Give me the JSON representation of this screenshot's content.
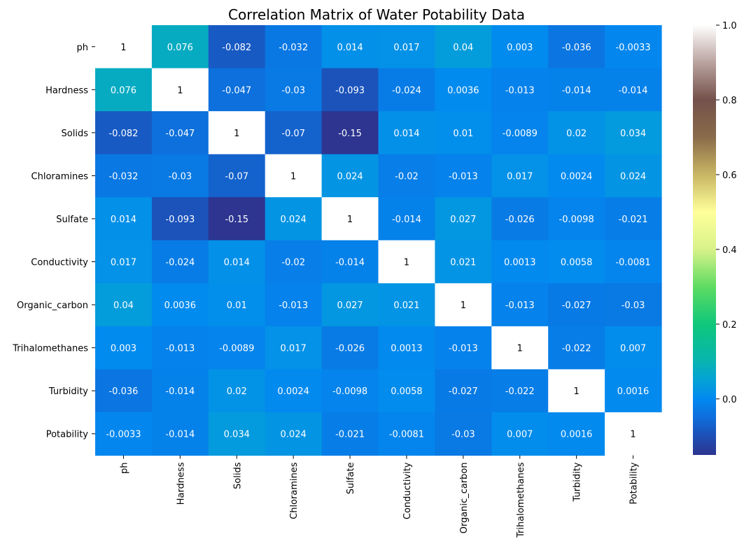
{
  "chart_data": {
    "type": "heatmap",
    "title": "Correlation Matrix of Water Potability Data",
    "xlabel": "",
    "ylabel": "",
    "x_categories": [
      "ph",
      "Hardness",
      "Solids",
      "Chloramines",
      "Sulfate",
      "Conductivity",
      "Organic_carbon",
      "Trihalomethanes",
      "Turbidity",
      "Potability"
    ],
    "y_categories": [
      "ph",
      "Hardness",
      "Solids",
      "Chloramines",
      "Sulfate",
      "Conductivity",
      "Organic_carbon",
      "Trihalomethanes",
      "Turbidity",
      "Potability"
    ],
    "values": [
      [
        1,
        0.076,
        -0.082,
        -0.032,
        0.014,
        0.017,
        0.04,
        0.003,
        -0.036,
        -0.0033
      ],
      [
        0.076,
        1,
        -0.047,
        -0.03,
        -0.093,
        -0.024,
        0.0036,
        -0.013,
        -0.014,
        -0.014
      ],
      [
        -0.082,
        -0.047,
        1,
        -0.07,
        -0.15,
        0.014,
        0.01,
        -0.0089,
        0.02,
        0.034
      ],
      [
        -0.032,
        -0.03,
        -0.07,
        1,
        0.024,
        -0.02,
        -0.013,
        0.017,
        0.0024,
        0.024
      ],
      [
        0.014,
        -0.093,
        -0.15,
        0.024,
        1,
        -0.014,
        0.027,
        -0.026,
        -0.0098,
        -0.021
      ],
      [
        0.017,
        -0.024,
        0.014,
        -0.02,
        -0.014,
        1,
        0.021,
        0.0013,
        0.0058,
        -0.0081
      ],
      [
        0.04,
        0.0036,
        0.01,
        -0.013,
        0.027,
        0.021,
        1,
        -0.013,
        -0.027,
        -0.03
      ],
      [
        0.003,
        -0.013,
        -0.0089,
        0.017,
        -0.026,
        0.0013,
        -0.013,
        1,
        -0.022,
        0.007
      ],
      [
        -0.036,
        -0.014,
        0.02,
        0.0024,
        -0.0098,
        0.0058,
        -0.027,
        -0.022,
        1,
        0.0016
      ],
      [
        -0.0033,
        -0.014,
        0.034,
        0.024,
        -0.021,
        -0.0081,
        -0.03,
        0.007,
        0.0016,
        1
      ]
    ],
    "annotations": [
      [
        "1",
        "0.076",
        "-0.082",
        "-0.032",
        "0.014",
        "0.017",
        "0.04",
        "0.003",
        "-0.036",
        "-0.0033"
      ],
      [
        "0.076",
        "1",
        "-0.047",
        "-0.03",
        "-0.093",
        "-0.024",
        "0.0036",
        "-0.013",
        "-0.014",
        "-0.014"
      ],
      [
        "-0.082",
        "-0.047",
        "1",
        "-0.07",
        "-0.15",
        "0.014",
        "0.01",
        "-0.0089",
        "0.02",
        "0.034"
      ],
      [
        "-0.032",
        "-0.03",
        "-0.07",
        "1",
        "0.024",
        "-0.02",
        "-0.013",
        "0.017",
        "0.0024",
        "0.024"
      ],
      [
        "0.014",
        "-0.093",
        "-0.15",
        "0.024",
        "1",
        "-0.014",
        "0.027",
        "-0.026",
        "-0.0098",
        "-0.021"
      ],
      [
        "0.017",
        "-0.024",
        "0.014",
        "-0.02",
        "-0.014",
        "1",
        "0.021",
        "0.0013",
        "0.0058",
        "-0.0081"
      ],
      [
        "0.04",
        "0.0036",
        "0.01",
        "-0.013",
        "0.027",
        "0.021",
        "1",
        "-0.013",
        "-0.027",
        "-0.03"
      ],
      [
        "0.003",
        "-0.013",
        "-0.0089",
        "0.017",
        "-0.026",
        "0.0013",
        "-0.013",
        "1",
        "-0.022",
        "0.007"
      ],
      [
        "-0.036",
        "-0.014",
        "0.02",
        "0.0024",
        "-0.0098",
        "0.0058",
        "-0.027",
        "-0.022",
        "1",
        "0.0016"
      ],
      [
        "-0.0033",
        "-0.014",
        "0.034",
        "0.024",
        "-0.021",
        "-0.0081",
        "-0.03",
        "0.007",
        "0.0016",
        "1"
      ]
    ],
    "colorbar": {
      "range": [
        -0.15,
        1.0
      ],
      "ticks": [
        0.0,
        0.2,
        0.4,
        0.6,
        0.8,
        1.0
      ],
      "tick_labels": [
        "0.0",
        "0.2",
        "0.4",
        "0.6",
        "0.8",
        "1.0"
      ],
      "colormap_stops": [
        {
          "v": -0.15,
          "color": "#2d3590"
        },
        {
          "v": -0.1,
          "color": "#1d4fb6"
        },
        {
          "v": -0.05,
          "color": "#0e6edb"
        },
        {
          "v": 0.0,
          "color": "#0289f0"
        },
        {
          "v": 0.05,
          "color": "#04a2d6"
        },
        {
          "v": 0.1,
          "color": "#08b4b0"
        },
        {
          "v": 0.2,
          "color": "#0fc77a"
        },
        {
          "v": 0.3,
          "color": "#5edb62"
        },
        {
          "v": 0.4,
          "color": "#d8f28a"
        },
        {
          "v": 0.5,
          "color": "#ffff9a"
        },
        {
          "v": 0.6,
          "color": "#c8b664"
        },
        {
          "v": 0.7,
          "color": "#8a6b4a"
        },
        {
          "v": 0.8,
          "color": "#74514b"
        },
        {
          "v": 0.9,
          "color": "#baa39f"
        },
        {
          "v": 1.0,
          "color": "#ffffff"
        }
      ]
    },
    "annotation_color": "#ffffff",
    "annotation_color_light_cells": "#000000"
  }
}
